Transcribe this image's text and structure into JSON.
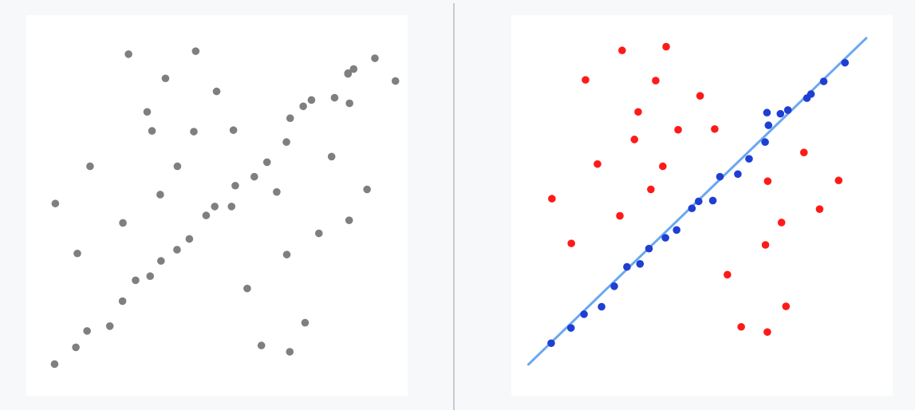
{
  "colors": {
    "background": "#f7f8fa",
    "panel": "#ffffff",
    "divider": "#c7cbd1",
    "unlabeled_point": "#7f7f7f",
    "outlier_point": "#ff1a1a",
    "inlier_point": "#1e3fd2",
    "fit_line": "#6aa8f0"
  },
  "chart_data": [
    {
      "type": "scatter",
      "title": "",
      "xlabel": "",
      "ylabel": "",
      "xlim": [
        0,
        100
      ],
      "ylim": [
        0,
        100
      ],
      "grid": false,
      "legend": "none",
      "series": [
        {
          "color": "#7f7f7f",
          "points": [
            [
              6.5,
              7.4
            ],
            [
              12.2,
              11.9
            ],
            [
              15.2,
              16.3
            ],
            [
              21.3,
              17.6
            ],
            [
              24.7,
              24.3
            ],
            [
              28.2,
              29.9
            ],
            [
              32.1,
              31.0
            ],
            [
              35.0,
              35.1
            ],
            [
              39.3,
              38.1
            ],
            [
              42.6,
              41.0
            ],
            [
              47.1,
              47.3
            ],
            [
              49.4,
              49.7
            ],
            [
              53.9,
              49.7
            ],
            [
              54.9,
              55.3
            ],
            [
              60.0,
              57.7
            ],
            [
              63.4,
              61.6
            ],
            [
              68.6,
              67.0
            ],
            [
              69.6,
              73.4
            ],
            [
              73.1,
              76.6
            ],
            [
              75.3,
              78.3
            ],
            [
              81.5,
              78.9
            ],
            [
              85.1,
              85.3
            ],
            [
              86.6,
              86.6
            ],
            [
              85.1,
              85.5
            ],
            [
              85.5,
              77.4
            ],
            [
              92.3,
              89.5
            ],
            [
              97.8,
              83.4
            ],
            [
              6.7,
              50.5
            ],
            [
              12.6,
              37.1
            ],
            [
              16.0,
              60.5
            ],
            [
              24.8,
              45.3
            ],
            [
              26.3,
              90.6
            ],
            [
              32.6,
              70.0
            ],
            [
              31.3,
              75.1
            ],
            [
              34.8,
              52.9
            ],
            [
              36.2,
              84.1
            ],
            [
              39.4,
              60.5
            ],
            [
              43.8,
              69.8
            ],
            [
              44.3,
              91.4
            ],
            [
              49.9,
              80.6
            ],
            [
              54.4,
              70.2
            ],
            [
              58.1,
              27.7
            ],
            [
              61.9,
              12.4
            ],
            [
              66.0,
              53.6
            ],
            [
              68.7,
              36.8
            ],
            [
              69.5,
              10.7
            ],
            [
              73.6,
              18.5
            ],
            [
              77.3,
              42.5
            ],
            [
              80.7,
              63.1
            ],
            [
              85.4,
              46.0
            ],
            [
              90.2,
              54.3
            ]
          ]
        }
      ]
    },
    {
      "type": "scatter",
      "title": "",
      "xlabel": "",
      "ylabel": "",
      "xlim": [
        0,
        100
      ],
      "ylim": [
        0,
        100
      ],
      "grid": false,
      "legend": "none",
      "fit_line": {
        "color": "#6aa8f0",
        "from": [
          3.5,
          7.3
        ],
        "to": [
          94.0,
          94.9
        ]
      },
      "series": [
        {
          "color": "#1e3fd2",
          "points": [
            [
              9.6,
              13.0
            ],
            [
              14.9,
              17.1
            ],
            [
              18.4,
              20.8
            ],
            [
              23.1,
              22.8
            ],
            [
              26.5,
              28.3
            ],
            [
              29.9,
              33.5
            ],
            [
              33.4,
              34.3
            ],
            [
              35.8,
              38.4
            ],
            [
              40.2,
              41.3
            ],
            [
              43.2,
              43.4
            ],
            [
              47.3,
              49.2
            ],
            [
              49.1,
              51.1
            ],
            [
              52.9,
              51.3
            ],
            [
              54.8,
              57.7
            ],
            [
              59.6,
              58.4
            ],
            [
              62.6,
              62.5
            ],
            [
              66.9,
              67.0
            ],
            [
              67.8,
              71.5
            ],
            [
              71.0,
              74.6
            ],
            [
              73.0,
              75.6
            ],
            [
              78.1,
              78.8
            ],
            [
              79.2,
              79.9
            ],
            [
              82.6,
              83.3
            ],
            [
              88.3,
              88.3
            ],
            [
              67.4,
              74.9
            ]
          ]
        },
        {
          "color": "#ff1a1a",
          "points": [
            [
              9.8,
              51.8
            ],
            [
              15.0,
              39.8
            ],
            [
              18.8,
              83.7
            ],
            [
              22.0,
              61.1
            ],
            [
              28.0,
              47.2
            ],
            [
              28.6,
              91.6
            ],
            [
              31.9,
              67.7
            ],
            [
              32.9,
              75.1
            ],
            [
              36.3,
              54.3
            ],
            [
              37.6,
              83.5
            ],
            [
              39.5,
              60.5
            ],
            [
              40.4,
              92.6
            ],
            [
              43.6,
              70.3
            ],
            [
              49.5,
              79.4
            ],
            [
              53.4,
              70.5
            ],
            [
              56.8,
              31.4
            ],
            [
              60.5,
              17.4
            ],
            [
              67.0,
              39.4
            ],
            [
              67.5,
              16.0
            ],
            [
              67.6,
              56.5
            ],
            [
              71.3,
              45.4
            ],
            [
              72.5,
              22.9
            ],
            [
              77.3,
              64.2
            ],
            [
              81.5,
              49.0
            ],
            [
              86.6,
              56.7
            ]
          ]
        }
      ]
    }
  ]
}
